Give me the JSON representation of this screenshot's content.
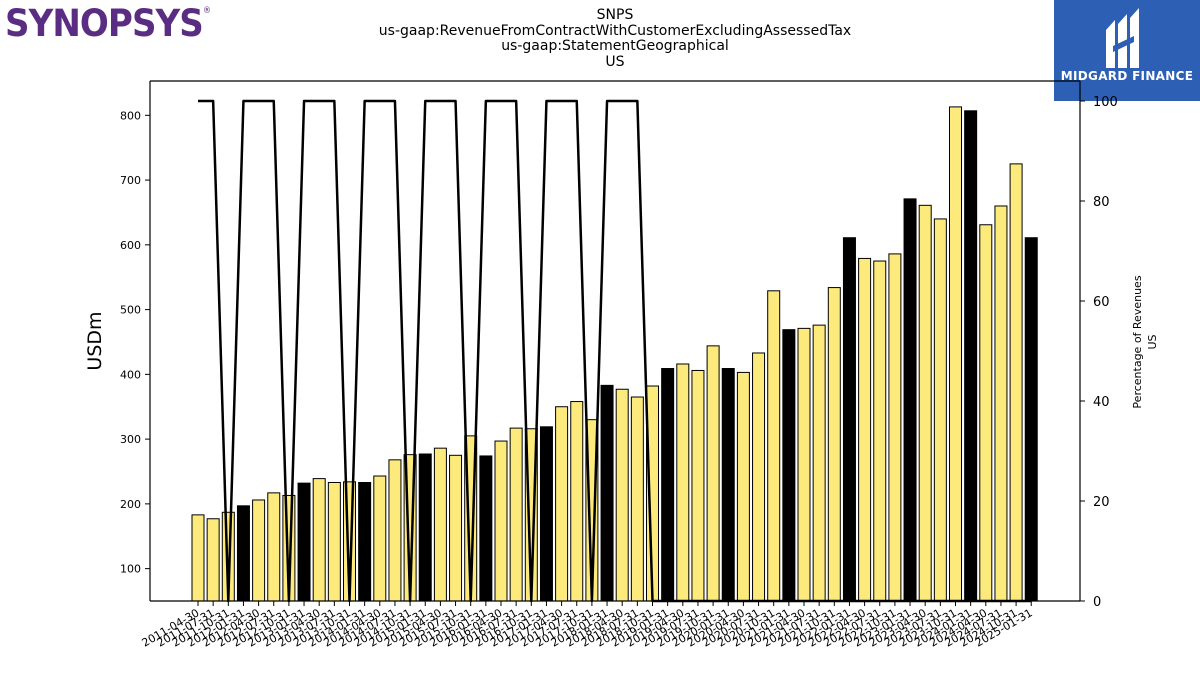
{
  "logos": {
    "left_text": "SYNOPSYS",
    "left_mark": "®",
    "right_text": "MIDGARD FINANCE",
    "right_icon": "midgard-m-logo-icon",
    "right_bg": "#2d5fb4",
    "left_color": "#5a2d82"
  },
  "header": {
    "line1": "SNPS",
    "line2": "us-gaap:RevenueFromContractWithCustomerExcludingAssessedTax",
    "line3": "us-gaap:StatementGeographical",
    "line4": "US"
  },
  "chart_data": {
    "type": "bar",
    "ylabel": "USDm",
    "y2label": "Percentage of Revenues\nUS",
    "ylim": [
      50,
      853
    ],
    "y2lim": [
      0,
      104
    ],
    "yticks": [
      100,
      200,
      300,
      400,
      500,
      600,
      700,
      800
    ],
    "y2ticks": [
      0,
      20,
      40,
      60,
      80,
      100
    ],
    "colors": {
      "quarter": "#fdea7c",
      "annual": "#000000",
      "line": "#000000"
    },
    "categories": [
      "2011-04-30",
      "2011-07-31",
      "2011-10-31",
      "2012-01-31",
      "2012-04-30",
      "2012-07-31",
      "2012-10-31",
      "2013-01-31",
      "2013-04-30",
      "2013-07-31",
      "2013-10-31",
      "2014-01-31",
      "2014-04-30",
      "2014-07-31",
      "2014-10-31",
      "2015-01-31",
      "2015-04-30",
      "2015-07-31",
      "2015-10-31",
      "2016-01-31",
      "2016-04-30",
      "2016-07-31",
      "2016-10-31",
      "2017-01-31",
      "2017-04-30",
      "2017-07-31",
      "2017-10-31",
      "2018-01-31",
      "2018-04-30",
      "2018-07-31",
      "2018-10-31",
      "2019-01-31",
      "2019-04-30",
      "2019-07-31",
      "2019-10-31",
      "2020-01-31",
      "2020-04-30",
      "2020-07-31",
      "2020-10-31",
      "2021-01-31",
      "2021-04-30",
      "2021-07-31",
      "2021-10-31",
      "2022-01-31",
      "2022-04-30",
      "2022-07-31",
      "2022-10-31",
      "2023-01-31",
      "2023-04-30",
      "2023-07-31",
      "2023-10-31",
      "2024-01-31",
      "2024-04-30",
      "2024-07-31",
      "2024-10-31",
      "2025-01-31"
    ],
    "tick_labels": [
      "2011-04-30",
      "2011-07-31",
      "2011-10-31",
      "2012-01-31",
      "2012-04-30",
      "2012-07-31",
      "2012-10-31",
      "2013-01-31",
      "2013-04-30",
      "2013-07-31",
      "2013-10-31",
      "2014-01-31",
      "2014-04-30",
      "2014-07-31",
      "2014-10-31",
      "2015-01-31",
      "2015-04-30",
      "2015-07-31",
      "2015-10-31",
      "2016-01-31",
      "2016-04-30",
      "2016-07-31",
      "2016-10-31",
      "2017-01-31",
      "2017-04-30",
      "2017-07-31",
      "2017-10-31",
      "2018-01-31",
      "2018-04-30",
      "2018-07-31",
      "2018-10-31",
      "2019-01-31",
      "2019-04-30",
      "2019-07-31",
      "2019-10-31",
      "2020-01-31",
      "2020-04-30",
      "2020-07-31",
      "2020-10-31",
      "2021-01-31",
      "2021-04-30",
      "2021-07-31",
      "2021-10-31",
      "2022-01-31",
      "2022-04-30",
      "2022-07-31",
      "2022-10-31",
      "2023-01-31",
      "2023-04-30",
      "2023-07-31",
      "2023-10-31",
      "2024-01-31",
      "2024-04-30",
      "2024-07-31",
      "2024-10-31",
      "2025-01-31"
    ],
    "values": [
      183,
      177,
      187,
      197,
      206,
      217,
      213,
      232,
      239,
      233,
      234,
      233,
      243,
      268,
      276,
      277,
      286,
      275,
      305,
      274,
      297,
      317,
      316,
      319,
      350,
      358,
      330,
      383,
      377,
      365,
      382,
      409,
      416,
      406,
      444,
      409,
      403,
      433,
      529,
      469,
      471,
      476,
      534,
      611,
      579,
      575,
      586,
      671,
      661,
      640,
      813,
      807,
      631,
      660,
      725,
      611
    ],
    "is_annual": [
      false,
      false,
      false,
      true,
      false,
      false,
      false,
      true,
      false,
      false,
      false,
      true,
      false,
      false,
      false,
      true,
      false,
      false,
      false,
      true,
      false,
      false,
      false,
      true,
      false,
      false,
      false,
      true,
      false,
      false,
      false,
      true,
      false,
      false,
      false,
      true,
      false,
      false,
      false,
      true,
      false,
      false,
      false,
      true,
      false,
      false,
      false,
      true,
      false,
      false,
      false,
      true,
      false,
      false,
      false,
      true
    ],
    "pct_line": [
      100,
      100,
      0,
      100,
      100,
      100,
      0,
      100,
      100,
      100,
      0,
      100,
      100,
      100,
      0,
      100,
      100,
      100,
      0,
      100,
      100,
      100,
      0,
      100,
      100,
      100,
      0,
      100,
      100,
      100,
      0,
      0,
      0,
      0,
      0,
      0,
      0,
      0,
      0,
      0,
      0,
      0,
      0,
      0,
      0,
      0,
      0,
      0,
      0,
      0,
      0,
      0,
      0,
      0,
      0,
      0
    ]
  }
}
